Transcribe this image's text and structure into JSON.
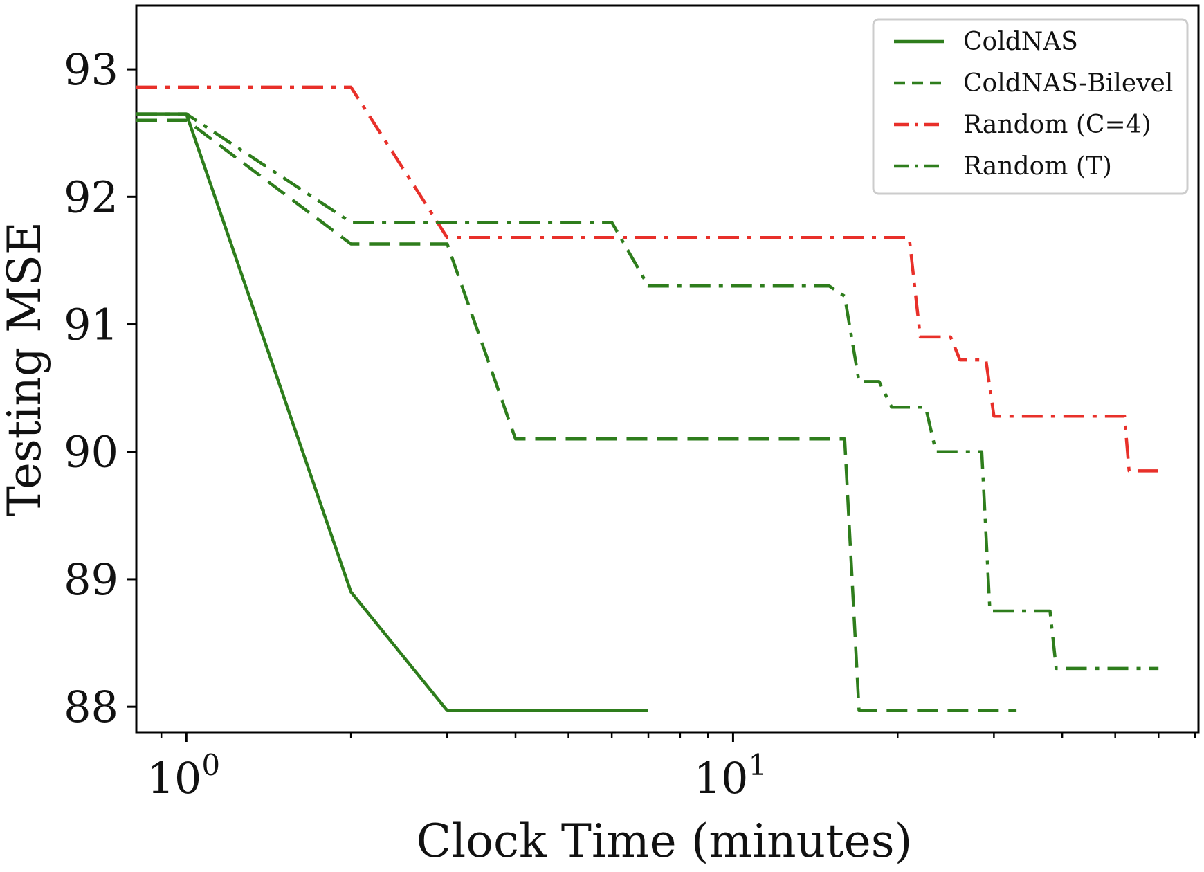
{
  "chart_data": {
    "type": "line",
    "xlabel": "Clock Time (minutes)",
    "ylabel": "Testing MSE",
    "xscale": "log",
    "xlim": [
      0.81,
      71
    ],
    "ylim": [
      87.8,
      93.5
    ],
    "x_ticks": [
      {
        "value": 1,
        "base": "10",
        "exp": "0"
      },
      {
        "value": 10,
        "base": "10",
        "exp": "1"
      }
    ],
    "y_ticks": [
      88,
      89,
      90,
      91,
      92,
      93
    ],
    "grid": false,
    "legend_position": "top-right",
    "series": [
      {
        "name": "ColdNAS",
        "color": "#2e7d1c",
        "dash": "solid",
        "points": [
          [
            0.81,
            92.65
          ],
          [
            1.0,
            92.65
          ],
          [
            2.0,
            88.9
          ],
          [
            3.0,
            87.97
          ],
          [
            7.0,
            87.97
          ]
        ]
      },
      {
        "name": "ColdNAS-Bilevel",
        "color": "#2e7d1c",
        "dash": "dashed",
        "points": [
          [
            0.81,
            92.6
          ],
          [
            1.0,
            92.6
          ],
          [
            2.0,
            91.63
          ],
          [
            3.0,
            91.63
          ],
          [
            4.0,
            90.1
          ],
          [
            16.0,
            90.1
          ],
          [
            17.0,
            87.97
          ],
          [
            33.0,
            87.97
          ]
        ]
      },
      {
        "name": "Random (C=4)",
        "color": "#e8302a",
        "dash": "dashdot",
        "points": [
          [
            0.81,
            92.86
          ],
          [
            2.0,
            92.86
          ],
          [
            3.0,
            91.68
          ],
          [
            21.0,
            91.68
          ],
          [
            22.0,
            90.9
          ],
          [
            25.0,
            90.9
          ],
          [
            26.0,
            90.72
          ],
          [
            29.0,
            90.72
          ],
          [
            30.0,
            90.28
          ],
          [
            52.0,
            90.28
          ],
          [
            53.0,
            89.85
          ],
          [
            60.0,
            89.85
          ]
        ]
      },
      {
        "name": "Random (T)",
        "color": "#2e7d1c",
        "dash": "dashdot",
        "points": [
          [
            0.81,
            92.65
          ],
          [
            1.0,
            92.65
          ],
          [
            2.0,
            91.8
          ],
          [
            6.0,
            91.8
          ],
          [
            7.0,
            91.3
          ],
          [
            15.0,
            91.3
          ],
          [
            16.0,
            91.22
          ],
          [
            17.0,
            90.55
          ],
          [
            18.5,
            90.55
          ],
          [
            19.5,
            90.35
          ],
          [
            22.5,
            90.35
          ],
          [
            23.5,
            90.0
          ],
          [
            28.5,
            90.0
          ],
          [
            29.5,
            88.75
          ],
          [
            38.0,
            88.75
          ],
          [
            39.0,
            88.3
          ],
          [
            60.0,
            88.3
          ]
        ]
      }
    ]
  }
}
